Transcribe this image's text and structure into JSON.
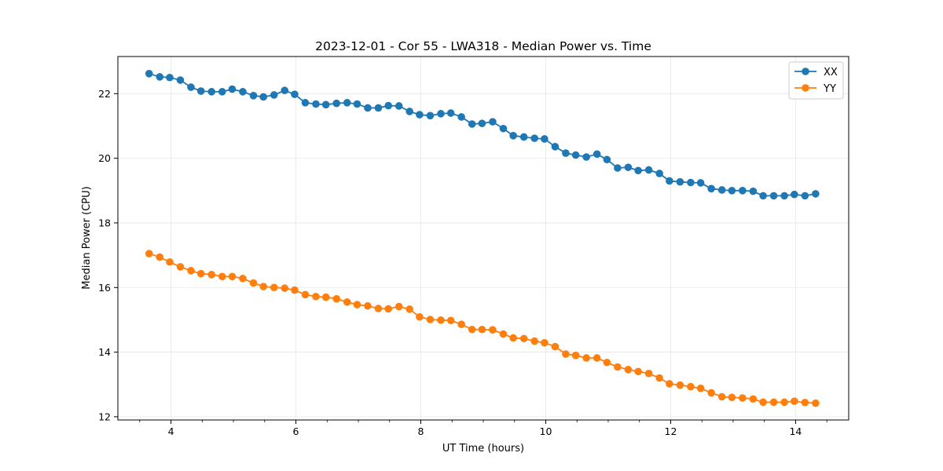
{
  "chart_data": {
    "type": "line",
    "title": "2023-12-01 - Cor 55 - LWA318 - Median Power vs. Time",
    "xlabel": "UT Time (hours)",
    "ylabel": "Median Power (CPU)",
    "xlim": [
      3.15,
      14.85
    ],
    "ylim": [
      11.9,
      23.15
    ],
    "xticks": [
      4,
      6,
      8,
      10,
      12,
      14
    ],
    "xtick_labels": [
      "4",
      "6",
      "8",
      "10",
      "12",
      "14"
    ],
    "yticks": [
      12,
      14,
      16,
      18,
      20,
      22
    ],
    "ytick_labels": [
      "12",
      "14",
      "16",
      "18",
      "20",
      "22"
    ],
    "grid": true,
    "legend_position": "top-right",
    "x": [
      3.65,
      3.82,
      3.98,
      4.15,
      4.32,
      4.48,
      4.65,
      4.82,
      4.98,
      5.15,
      5.32,
      5.48,
      5.65,
      5.82,
      5.98,
      6.15,
      6.32,
      6.48,
      6.65,
      6.82,
      6.98,
      7.15,
      7.32,
      7.48,
      7.65,
      7.82,
      7.98,
      8.15,
      8.32,
      8.48,
      8.65,
      8.82,
      8.98,
      9.15,
      9.32,
      9.48,
      9.65,
      9.82,
      9.98,
      10.15,
      10.32,
      10.48,
      10.65,
      10.82,
      10.98,
      11.15,
      11.32,
      11.48,
      11.65,
      11.82,
      11.98,
      12.15,
      12.32,
      12.48,
      12.65,
      12.82,
      12.98,
      13.15,
      13.32,
      13.48,
      13.65,
      13.82,
      13.98,
      14.15,
      14.32
    ],
    "series": [
      {
        "name": "XX",
        "color": "#1f77b4",
        "values": [
          22.62,
          22.52,
          22.5,
          22.42,
          22.2,
          22.08,
          22.06,
          22.06,
          22.14,
          22.06,
          21.94,
          21.9,
          21.96,
          22.1,
          21.98,
          21.72,
          21.68,
          21.66,
          21.7,
          21.72,
          21.68,
          21.56,
          21.56,
          21.63,
          21.62,
          21.45,
          21.35,
          21.32,
          21.38,
          21.4,
          21.28,
          21.06,
          21.08,
          21.13,
          20.92,
          20.7,
          20.66,
          20.62,
          20.6,
          20.36,
          20.16,
          20.1,
          20.04,
          20.13,
          19.96,
          19.7,
          19.72,
          19.62,
          19.64,
          19.53,
          19.3,
          19.27,
          19.25,
          19.24,
          19.06,
          19.02,
          19.0,
          19.0,
          18.98,
          18.84,
          18.84,
          18.84,
          18.88,
          18.84,
          18.9
        ]
      },
      {
        "name": "YY",
        "color": "#ff7f0e",
        "values": [
          17.05,
          16.94,
          16.79,
          16.64,
          16.52,
          16.43,
          16.4,
          16.34,
          16.34,
          16.28,
          16.14,
          16.03,
          16.0,
          15.98,
          15.92,
          15.78,
          15.72,
          15.7,
          15.65,
          15.55,
          15.47,
          15.43,
          15.35,
          15.34,
          15.41,
          15.33,
          15.09,
          15.01,
          14.99,
          14.98,
          14.86,
          14.7,
          14.7,
          14.69,
          14.56,
          14.44,
          14.42,
          14.34,
          14.29,
          14.17,
          13.94,
          13.9,
          13.82,
          13.82,
          13.68,
          13.54,
          13.46,
          13.4,
          13.34,
          13.2,
          13.02,
          12.98,
          12.93,
          12.88,
          12.74,
          12.62,
          12.6,
          12.58,
          12.55,
          12.45,
          12.45,
          12.45,
          12.48,
          12.44,
          12.42
        ]
      }
    ]
  }
}
